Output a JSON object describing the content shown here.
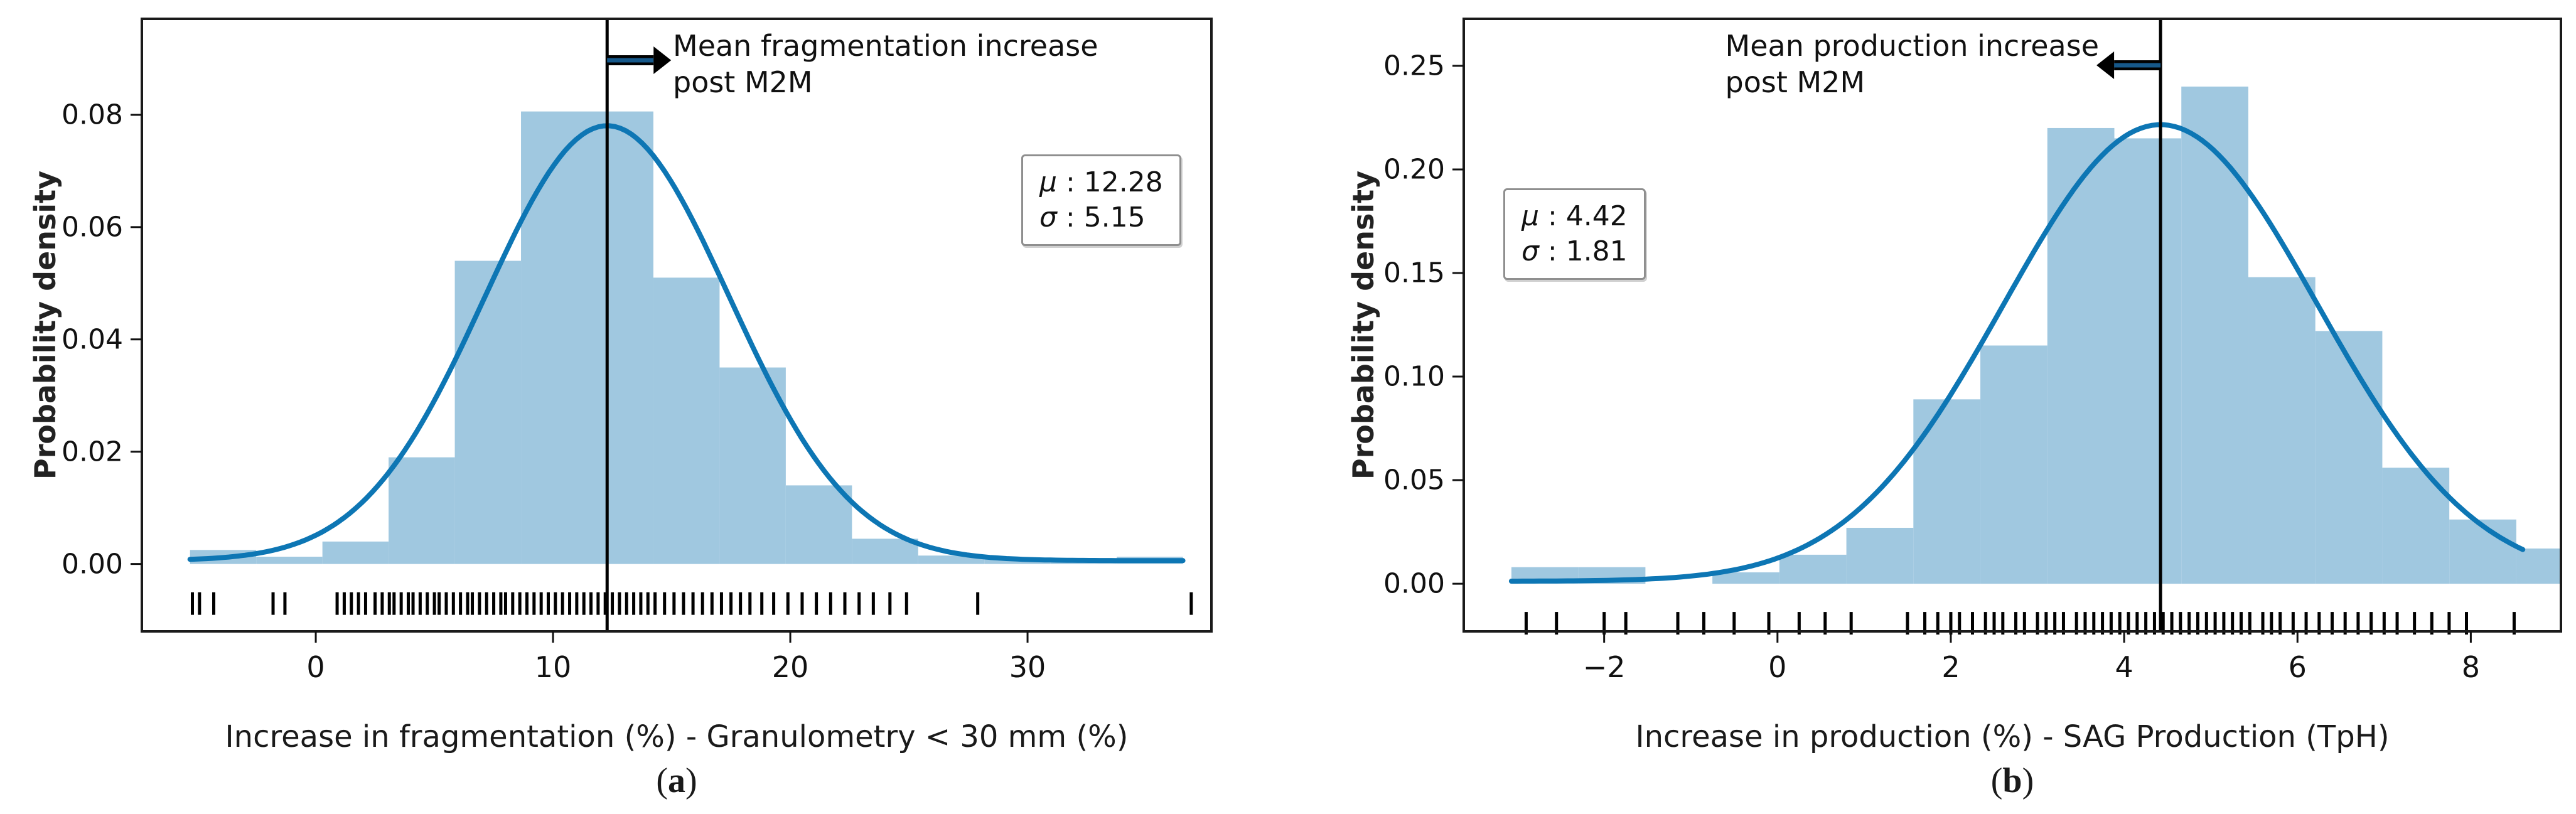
{
  "figure": {
    "background": "#ffffff"
  },
  "captions": {
    "a": {
      "open": "(",
      "letter": "a",
      "close": ")"
    },
    "b": {
      "open": "(",
      "letter": "b",
      "close": ")"
    }
  },
  "chart_data": [
    {
      "id": "a",
      "type": "bar",
      "subtype": "histogram-with-kde-and-rug",
      "title": "",
      "xlabel": "Increase in fragmentation (%) - Granulometry < 30 mm (%)",
      "ylabel": "Probability density",
      "xlim": [
        -7.33,
        37.75
      ],
      "ylim": [
        -0.012,
        0.0971
      ],
      "x_ticks": [
        0,
        10,
        20,
        30
      ],
      "y_ticks": [
        {
          "v": 0.0,
          "label": "0.00"
        },
        {
          "v": 0.02,
          "label": "0.02"
        },
        {
          "v": 0.04,
          "label": "0.04"
        },
        {
          "v": 0.06,
          "label": "0.06"
        },
        {
          "v": 0.08,
          "label": "0.08"
        }
      ],
      "bin_start": -5.3,
      "bin_width": 2.79,
      "bar_heights": [
        0.0025,
        0.0013,
        0.004,
        0.019,
        0.054,
        0.0806,
        0.0806,
        0.051,
        0.035,
        0.014,
        0.0045,
        0.0015,
        0.0008,
        0.0008,
        0.0013
      ],
      "kde": {
        "mu": 12.28,
        "sigma": 5.15,
        "tail_lift": 0.0006,
        "range": [
          -5.3,
          36.55
        ]
      },
      "mean_line_x": 12.28,
      "annotation": {
        "line1": "Mean fragmentation increase",
        "line2": "post M2M",
        "direction": "right"
      },
      "stats": {
        "mu_label": "μ",
        "sigma_label": "σ",
        "colon": " : ",
        "mu_value": "12.28",
        "sigma_value": "5.15"
      },
      "rug": [
        -5.2,
        -4.9,
        -4.3,
        -1.8,
        -1.3,
        0.9,
        1.2,
        1.5,
        1.8,
        2.1,
        2.5,
        2.8,
        3.1,
        3.3,
        3.6,
        3.9,
        4.1,
        4.4,
        4.7,
        5.0,
        5.2,
        5.5,
        5.8,
        6.1,
        6.4,
        6.6,
        6.9,
        7.2,
        7.5,
        7.8,
        8.0,
        8.3,
        8.6,
        8.9,
        9.2,
        9.5,
        9.8,
        10.1,
        10.4,
        10.7,
        11.0,
        11.3,
        11.6,
        11.9,
        12.2,
        12.5,
        12.8,
        13.1,
        13.4,
        13.7,
        14.0,
        14.3,
        14.7,
        15.1,
        15.5,
        15.9,
        16.3,
        16.7,
        17.1,
        17.5,
        17.9,
        18.3,
        18.8,
        19.3,
        19.9,
        20.5,
        21.1,
        21.7,
        22.3,
        22.9,
        23.5,
        24.2,
        24.9,
        27.9,
        36.9
      ],
      "colors": {
        "bar": "#a0c8e0",
        "kde": "#0d76b4",
        "mean_line": "#000000",
        "rug": "#000000",
        "arrow_fill": "#16588a",
        "arrow_edge": "#000000",
        "frame": "#1a1a1a"
      }
    },
    {
      "id": "b",
      "type": "bar",
      "subtype": "histogram-with-kde-and-rug",
      "title": "",
      "xlabel": "Increase in production (%) - SAG Production (TpH)",
      "ylabel": "Probability density",
      "xlim": [
        -3.62,
        9.04
      ],
      "ylim": [
        -0.023,
        0.2727
      ],
      "x_ticks": [
        -2,
        0,
        2,
        4,
        6,
        8
      ],
      "y_ticks": [
        {
          "v": 0.0,
          "label": "0.00"
        },
        {
          "v": 0.05,
          "label": "0.05"
        },
        {
          "v": 0.1,
          "label": "0.10"
        },
        {
          "v": 0.15,
          "label": "0.15"
        },
        {
          "v": 0.2,
          "label": "0.20"
        },
        {
          "v": 0.25,
          "label": "0.25"
        }
      ],
      "bin_start": -3.07,
      "bin_width": 0.773,
      "bar_heights": [
        0.008,
        0.008,
        0.0,
        0.0055,
        0.014,
        0.027,
        0.089,
        0.115,
        0.22,
        0.215,
        0.24,
        0.148,
        0.122,
        0.056,
        0.031,
        0.017
      ],
      "kde": {
        "mu": 4.42,
        "sigma": 1.81,
        "tail_lift": 0.0012,
        "range": [
          -3.07,
          8.6
        ]
      },
      "mean_line_x": 4.42,
      "annotation": {
        "line1": "Mean production increase",
        "line2": "post M2M",
        "direction": "left"
      },
      "stats": {
        "mu_label": "μ",
        "sigma_label": "σ",
        "colon": " : ",
        "mu_value": "4.42",
        "sigma_value": "1.81"
      },
      "rug": [
        -2.9,
        -2.55,
        -2.0,
        -1.75,
        -1.15,
        -0.85,
        -0.5,
        -0.1,
        0.25,
        0.55,
        0.85,
        1.5,
        1.7,
        1.85,
        2.0,
        2.1,
        2.25,
        2.4,
        2.5,
        2.6,
        2.75,
        2.85,
        3.0,
        3.1,
        3.2,
        3.3,
        3.45,
        3.55,
        3.65,
        3.75,
        3.85,
        3.95,
        4.05,
        4.15,
        4.25,
        4.35,
        4.45,
        4.55,
        4.65,
        4.75,
        4.85,
        4.95,
        5.05,
        5.15,
        5.25,
        5.35,
        5.45,
        5.6,
        5.7,
        5.8,
        5.95,
        6.1,
        6.25,
        6.4,
        6.55,
        6.7,
        6.85,
        7.0,
        7.15,
        7.35,
        7.55,
        7.75,
        7.95,
        8.5
      ],
      "colors": {
        "bar": "#a0c8e0",
        "kde": "#0d76b4",
        "mean_line": "#000000",
        "rug": "#000000",
        "arrow_fill": "#16588a",
        "arrow_edge": "#000000",
        "frame": "#1a1a1a"
      }
    }
  ]
}
